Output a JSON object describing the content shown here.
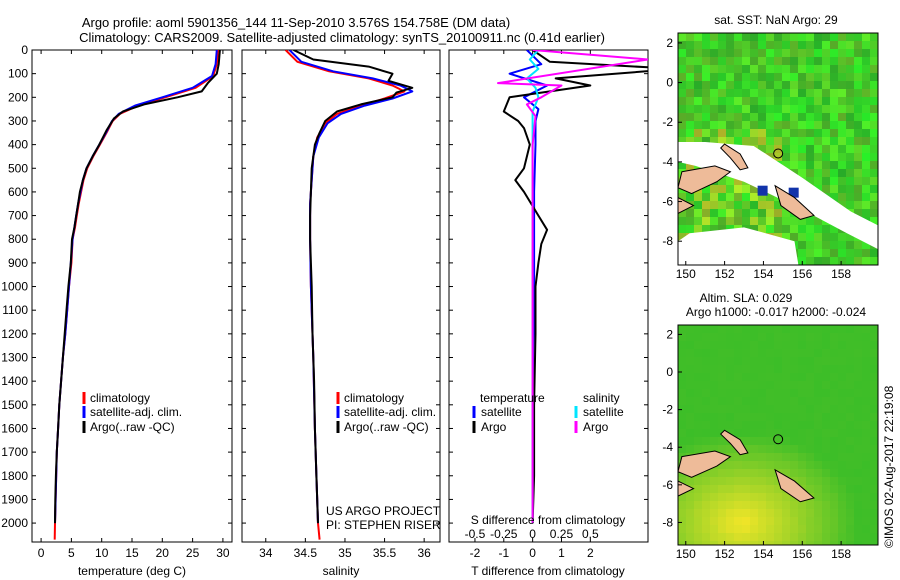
{
  "header": {
    "line1": "Argo profile: aoml 5901356_144 11-Sep-2010 3.576S 154.758E (DM data)",
    "line2": "Climatology: CARS2009. Satellite-adjusted climatology: synTS_20100911.nc (0.41d earlier)"
  },
  "colors": {
    "climatology": "#ff0000",
    "satellite": "#0000ff",
    "argo": "#000000",
    "salinity_satellite": "#00e5ff",
    "salinity_argo": "#ff00ff",
    "ocean": "#33cc33",
    "land": "#eebb99"
  },
  "footer": {
    "project": "US ARGO PROJECT",
    "pi": "PI: STEPHEN RISER",
    "imos": "©IMOS 02-Aug-2017 22:19:08"
  },
  "chart_data": [
    {
      "id": "temperature",
      "type": "line",
      "xlabel": "temperature (deg C)",
      "ylabel": "",
      "xlim": [
        -1.5,
        31.5
      ],
      "ylim": [
        2080,
        0
      ],
      "xticks": [
        0,
        5,
        10,
        15,
        20,
        25,
        30
      ],
      "yticks": [
        0,
        100,
        200,
        300,
        400,
        500,
        600,
        700,
        800,
        900,
        1000,
        1100,
        1200,
        1300,
        1400,
        1500,
        1600,
        1700,
        1800,
        1900,
        2000
      ],
      "legend": [
        "climatology",
        "satellite-adj. clim.",
        "Argo(..raw -QC)"
      ],
      "series": [
        {
          "name": "climatology",
          "color": "#ff0000",
          "points": [
            [
              29.2,
              0
            ],
            [
              29.0,
              60
            ],
            [
              28.4,
              110
            ],
            [
              25.5,
              160
            ],
            [
              20.5,
              200
            ],
            [
              16,
              235
            ],
            [
              13,
              270
            ],
            [
              11.8,
              300
            ],
            [
              10.8,
              350
            ],
            [
              9.7,
              400
            ],
            [
              8.6,
              450
            ],
            [
              7.6,
              500
            ],
            [
              7.0,
              550
            ],
            [
              6.6,
              600
            ],
            [
              6.2,
              650
            ],
            [
              5.9,
              700
            ],
            [
              5.6,
              750
            ],
            [
              5.2,
              800
            ],
            [
              5.0,
              900
            ],
            [
              4.6,
              1000
            ],
            [
              4.3,
              1100
            ],
            [
              4.0,
              1200
            ],
            [
              3.6,
              1300
            ],
            [
              3.3,
              1400
            ],
            [
              3.0,
              1500
            ],
            [
              2.8,
              1600
            ],
            [
              2.6,
              1700
            ],
            [
              2.5,
              1800
            ],
            [
              2.4,
              1900
            ],
            [
              2.3,
              2000
            ],
            [
              2.25,
              2070
            ]
          ]
        },
        {
          "name": "satellite-adj. clim.",
          "color": "#0000ff",
          "points": [
            [
              29.0,
              0
            ],
            [
              28.8,
              60
            ],
            [
              28.2,
              110
            ],
            [
              25.0,
              160
            ],
            [
              20.0,
              200
            ],
            [
              15.5,
              235
            ],
            [
              12.8,
              270
            ],
            [
              11.7,
              300
            ],
            [
              10.7,
              350
            ],
            [
              9.6,
              400
            ],
            [
              8.5,
              450
            ],
            [
              7.5,
              500
            ],
            [
              6.9,
              550
            ],
            [
              6.5,
              600
            ],
            [
              6.1,
              650
            ],
            [
              5.8,
              700
            ],
            [
              5.5,
              750
            ],
            [
              5.2,
              800
            ],
            [
              4.9,
              900
            ],
            [
              4.6,
              1000
            ],
            [
              4.3,
              1100
            ],
            [
              4.0,
              1200
            ],
            [
              3.6,
              1300
            ],
            [
              3.3,
              1400
            ],
            [
              3.0,
              1500
            ],
            [
              2.8,
              1600
            ],
            [
              2.6,
              1700
            ],
            [
              2.5,
              1800
            ],
            [
              2.4,
              1900
            ],
            [
              2.3,
              2000
            ]
          ]
        },
        {
          "name": "Argo(..raw -QC)",
          "color": "#000000",
          "points": [
            [
              29.5,
              0
            ],
            [
              29.3,
              60
            ],
            [
              29.0,
              100
            ],
            [
              27.5,
              140
            ],
            [
              26.5,
              175
            ],
            [
              22.5,
              200
            ],
            [
              17,
              230
            ],
            [
              13.5,
              260
            ],
            [
              12,
              290
            ],
            [
              10.8,
              340
            ],
            [
              9.6,
              400
            ],
            [
              8.5,
              450
            ],
            [
              7.5,
              500
            ],
            [
              6.9,
              550
            ],
            [
              6.4,
              600
            ],
            [
              6.1,
              650
            ],
            [
              5.8,
              700
            ],
            [
              5.5,
              750
            ],
            [
              5.1,
              800
            ],
            [
              4.9,
              900
            ],
            [
              4.5,
              1000
            ],
            [
              4.2,
              1100
            ],
            [
              3.9,
              1200
            ],
            [
              3.6,
              1300
            ],
            [
              3.3,
              1400
            ],
            [
              3.0,
              1500
            ],
            [
              2.8,
              1600
            ],
            [
              2.6,
              1700
            ],
            [
              2.45,
              1800
            ],
            [
              2.35,
              1900
            ],
            [
              2.3,
              2000
            ]
          ]
        }
      ]
    },
    {
      "id": "salinity",
      "type": "line",
      "xlabel": "salinity",
      "xlim": [
        33.7,
        36.2
      ],
      "ylim": [
        2080,
        0
      ],
      "xticks": [
        34,
        34.5,
        35,
        35.5,
        36
      ],
      "legend": [
        "climatology",
        "satellite-adj. clim.",
        "Argo(..raw -QC)"
      ],
      "series": [
        {
          "name": "climatology",
          "color": "#ff0000",
          "points": [
            [
              34.25,
              0
            ],
            [
              34.4,
              50
            ],
            [
              34.8,
              90
            ],
            [
              35.3,
              120
            ],
            [
              35.6,
              150
            ],
            [
              35.75,
              175
            ],
            [
              35.5,
              205
            ],
            [
              35.2,
              235
            ],
            [
              34.9,
              270
            ],
            [
              34.75,
              310
            ],
            [
              34.65,
              370
            ],
            [
              34.6,
              450
            ],
            [
              34.58,
              550
            ],
            [
              34.56,
              650
            ],
            [
              34.56,
              800
            ],
            [
              34.57,
              1000
            ],
            [
              34.6,
              1300
            ],
            [
              34.62,
              1600
            ],
            [
              34.64,
              1800
            ],
            [
              34.66,
              2000
            ],
            [
              34.68,
              2070
            ]
          ]
        },
        {
          "name": "satellite-adj. clim.",
          "color": "#0000ff",
          "points": [
            [
              34.3,
              0
            ],
            [
              34.45,
              50
            ],
            [
              34.85,
              90
            ],
            [
              35.35,
              120
            ],
            [
              35.7,
              150
            ],
            [
              35.85,
              175
            ],
            [
              35.6,
              205
            ],
            [
              35.25,
              235
            ],
            [
              34.95,
              270
            ],
            [
              34.78,
              310
            ],
            [
              34.67,
              370
            ],
            [
              34.6,
              450
            ],
            [
              34.58,
              550
            ],
            [
              34.56,
              650
            ],
            [
              34.56,
              800
            ],
            [
              34.57,
              1000
            ],
            [
              34.6,
              1300
            ],
            [
              34.62,
              1600
            ],
            [
              34.64,
              1800
            ],
            [
              34.66,
              2000
            ]
          ]
        },
        {
          "name": "Argo(..raw -QC)",
          "color": "#000000",
          "points": [
            [
              34.35,
              0
            ],
            [
              34.6,
              40
            ],
            [
              35.3,
              70
            ],
            [
              35.6,
              100
            ],
            [
              35.55,
              130
            ],
            [
              35.85,
              160
            ],
            [
              35.65,
              180
            ],
            [
              35.6,
              200
            ],
            [
              35.2,
              230
            ],
            [
              34.9,
              260
            ],
            [
              34.75,
              300
            ],
            [
              34.68,
              350
            ],
            [
              34.62,
              400
            ],
            [
              34.6,
              450
            ],
            [
              34.58,
              500
            ],
            [
              34.57,
              600
            ],
            [
              34.56,
              700
            ],
            [
              34.56,
              800
            ],
            [
              34.57,
              900
            ],
            [
              34.58,
              1000
            ],
            [
              34.59,
              1200
            ],
            [
              34.61,
              1400
            ],
            [
              34.62,
              1600
            ],
            [
              34.64,
              1800
            ],
            [
              34.66,
              2000
            ]
          ]
        }
      ]
    },
    {
      "id": "differences",
      "type": "line",
      "xlabel": "T difference from climatology",
      "xlabel_top": "S difference from climatology",
      "xlim": [
        -2.9,
        4.0
      ],
      "ylim": [
        2080,
        0
      ],
      "xticks": [
        -2,
        -1,
        0,
        1,
        2
      ],
      "s_ticks": [
        {
          "label": "-0.5",
          "at": -2
        },
        {
          "label": "-0.25",
          "at": -1
        },
        {
          "label": "0",
          "at": 0
        },
        {
          "label": "0.25",
          "at": 1
        },
        {
          "label": "0.5",
          "at": 2
        }
      ],
      "legend": {
        "temperature_title": "temperature",
        "salinity_title": "salinity",
        "satellite": "satellite",
        "argo": "Argo"
      },
      "series": [
        {
          "name": "T satellite",
          "color": "#0000ff",
          "points": [
            [
              -0.2,
              0
            ],
            [
              0.3,
              60
            ],
            [
              -0.8,
              100
            ],
            [
              0.5,
              150
            ],
            [
              -0.3,
              200
            ],
            [
              0.2,
              250
            ],
            [
              0.1,
              300
            ],
            [
              0.1,
              400
            ],
            [
              0.05,
              600
            ],
            [
              0.05,
              1000
            ],
            [
              0,
              1500
            ],
            [
              0,
              2000
            ]
          ]
        },
        {
          "name": "T Argo",
          "color": "#000000",
          "points": [
            [
              0,
              0
            ],
            [
              0.6,
              50
            ],
            [
              5,
              80
            ],
            [
              0.8,
              120
            ],
            [
              2.0,
              150
            ],
            [
              -0.8,
              200
            ],
            [
              -1.0,
              260
            ],
            [
              -0.5,
              300
            ],
            [
              -0.3,
              330
            ],
            [
              -0.1,
              400
            ],
            [
              -0.3,
              500
            ],
            [
              -0.6,
              550
            ],
            [
              -0.3,
              600
            ],
            [
              0.2,
              700
            ],
            [
              0.5,
              760
            ],
            [
              0.3,
              820
            ],
            [
              0.2,
              900
            ],
            [
              0.1,
              1000
            ],
            [
              0.1,
              1200
            ],
            [
              0.05,
              1500
            ],
            [
              0.05,
              1800
            ],
            [
              0,
              2000
            ]
          ]
        },
        {
          "name": "S satellite",
          "color": "#00e5ff",
          "points": [
            [
              0.2,
              0
            ],
            [
              -0.1,
              40
            ],
            [
              0.2,
              80
            ],
            [
              -0.2,
              120
            ],
            [
              0.1,
              160
            ],
            [
              0.2,
              200
            ],
            [
              0,
              260
            ],
            [
              0,
              400
            ],
            [
              0,
              800
            ],
            [
              0,
              1500
            ],
            [
              0,
              2000
            ]
          ]
        },
        {
          "name": "S Argo",
          "color": "#ff00ff",
          "points": [
            [
              0,
              0
            ],
            [
              4,
              40
            ],
            [
              -1.2,
              140
            ],
            [
              1.0,
              150
            ],
            [
              0.3,
              200
            ],
            [
              -0.2,
              230
            ],
            [
              0.1,
              280
            ],
            [
              0,
              400
            ],
            [
              0,
              800
            ],
            [
              0,
              2000
            ]
          ]
        }
      ]
    },
    {
      "id": "sst-map",
      "type": "heatmap",
      "title": "sat. SST: NaN Argo: 29",
      "xlim": [
        149.6,
        159.9
      ],
      "ylim": [
        -9.2,
        2.5
      ],
      "xticks": [
        150,
        152,
        154,
        156,
        158
      ],
      "yticks": [
        2,
        0,
        -2,
        -4,
        -6,
        -8
      ],
      "argo_position": [
        154.758,
        -3.576
      ]
    },
    {
      "id": "sla-map",
      "type": "heatmap",
      "title": "Altim. SLA: 0.029",
      "subtitle": "Argo h1000: -0.017 h2000: -0.024",
      "xlim": [
        149.6,
        159.9
      ],
      "ylim": [
        -9.2,
        2.5
      ],
      "xticks": [
        150,
        152,
        154,
        156,
        158
      ],
      "yticks": [
        2,
        0,
        -2,
        -4,
        -6,
        -8
      ],
      "argo_position": [
        154.758,
        -3.576
      ]
    }
  ]
}
